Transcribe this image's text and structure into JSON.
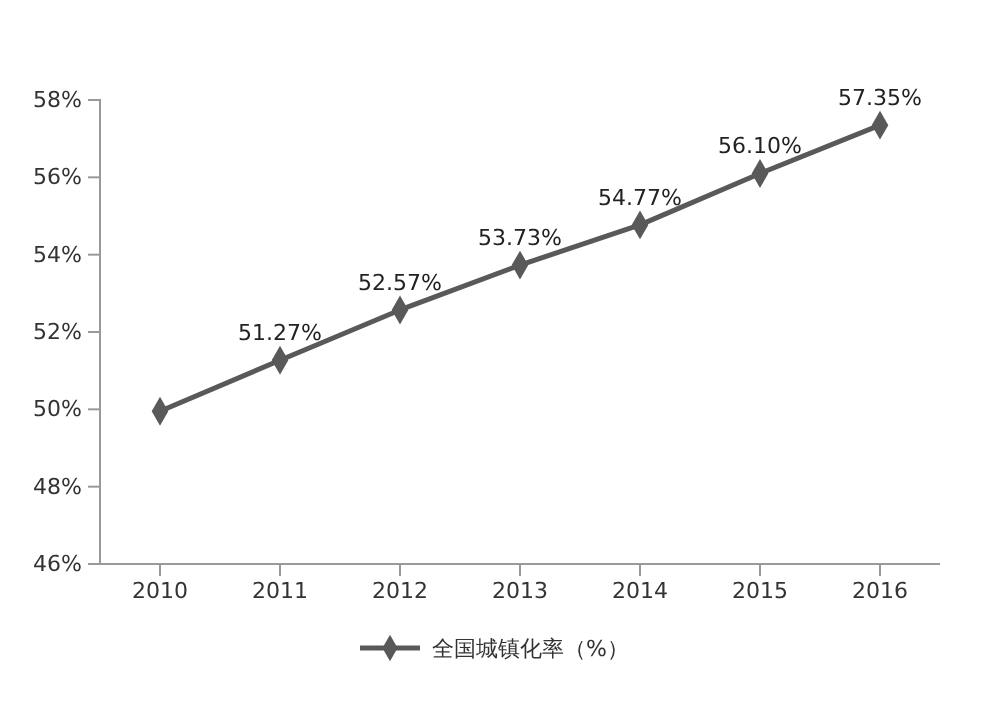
{
  "chart_data": {
    "type": "line",
    "categories": [
      "2010",
      "2011",
      "2012",
      "2013",
      "2014",
      "2015",
      "2016"
    ],
    "series": [
      {
        "name": "全国城镇化率（%）",
        "color": "#595959",
        "values": [
          49.95,
          51.27,
          52.57,
          53.73,
          54.77,
          56.1,
          57.35
        ],
        "value_labels": [
          null,
          "51.27%",
          "52.57%",
          "53.73%",
          "54.77%",
          "56.10%",
          "57.35%"
        ]
      }
    ],
    "ylim": [
      46,
      58
    ],
    "yticks": [
      {
        "value": 46,
        "label": "46%"
      },
      {
        "value": 48,
        "label": "48%"
      },
      {
        "value": 50,
        "label": "50%"
      },
      {
        "value": 52,
        "label": "52%"
      },
      {
        "value": 54,
        "label": "54%"
      },
      {
        "value": 56,
        "label": "56%"
      },
      {
        "value": 58,
        "label": "58%"
      }
    ],
    "grid": false,
    "legend": "bottom",
    "marker": "diamond",
    "line_style": "solid"
  }
}
